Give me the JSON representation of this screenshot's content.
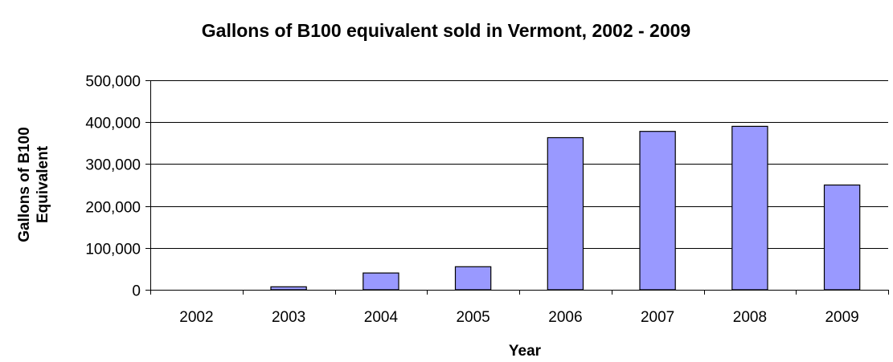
{
  "chart_data": {
    "type": "bar",
    "title": "Gallons of B100 equivalent sold in Vermont, 2002 - 2009",
    "xlabel": "Year",
    "ylabel_lines": [
      "Gallons of B100",
      "Equivalent"
    ],
    "categories": [
      "2002",
      "2003",
      "2004",
      "2005",
      "2006",
      "2007",
      "2008",
      "2009"
    ],
    "values": [
      0,
      7000,
      40000,
      55000,
      363000,
      378000,
      390000,
      250000
    ],
    "ylim": [
      0,
      500000
    ],
    "yticks": [
      0,
      100000,
      200000,
      300000,
      400000,
      500000
    ],
    "ytick_labels": [
      "0",
      "100,000",
      "200,000",
      "300,000",
      "400,000",
      "500,000"
    ],
    "grid": true,
    "legend": "none",
    "colors": {
      "bar_fill": "#9999ff",
      "bar_stroke": "#000000",
      "grid": "#000000",
      "background": "#ffffff"
    }
  }
}
